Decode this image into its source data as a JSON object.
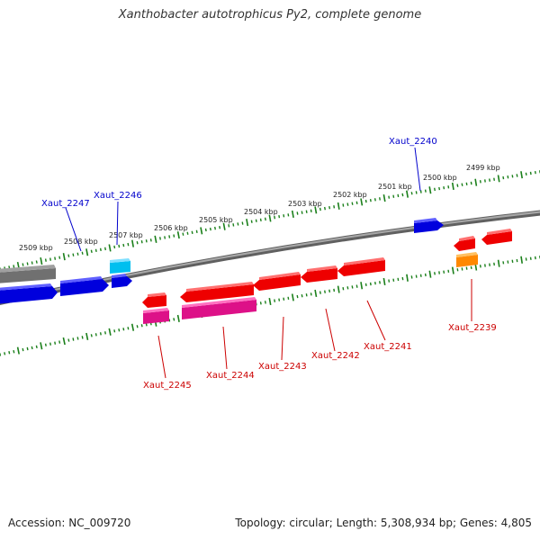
{
  "title": "Xanthobacter autotrophicus Py2, complete genome",
  "accession_text": "Accession: NC_009720",
  "summary_text": "Topology: circular; Length: 5,308,934 bp; Genes: 4,805",
  "colors": {
    "backbone": "#808080",
    "ticks": "#1a7f1a",
    "forward_label": "#0000cc",
    "reverse_label": "#cc0000",
    "blue": "#0000dd",
    "cyan": "#00bfef",
    "gray": "#707070",
    "red": "#ee0000",
    "magenta": "#dd1188",
    "orange": "#ff8800"
  },
  "kbp_labels": [
    "2499 kbp",
    "2500 kbp",
    "2501 kbp",
    "2502 kbp",
    "2503 kbp",
    "2504 kbp",
    "2505 kbp",
    "2506 kbp",
    "2507 kbp",
    "2508 kbp",
    "2509 kbp"
  ],
  "gene_labels": {
    "xaut_2240": "Xaut_2240",
    "xaut_2246": "Xaut_2246",
    "xaut_2247": "Xaut_2247",
    "xaut_2239": "Xaut_2239",
    "xaut_2241": "Xaut_2241",
    "xaut_2242": "Xaut_2242",
    "xaut_2243": "Xaut_2243",
    "xaut_2244": "Xaut_2244",
    "xaut_2245": "Xaut_2245"
  }
}
